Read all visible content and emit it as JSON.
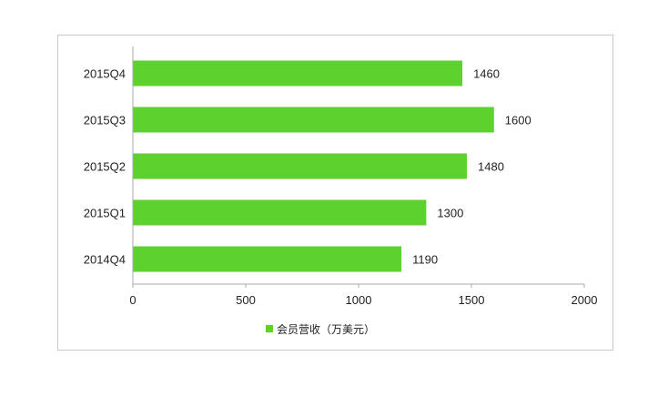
{
  "chart_data": {
    "type": "bar",
    "orientation": "horizontal",
    "categories": [
      "2015Q4",
      "2015Q3",
      "2015Q2",
      "2015Q1",
      "2014Q4"
    ],
    "series": [
      {
        "name": "会员营收（万美元）",
        "values": [
          1460,
          1600,
          1480,
          1300,
          1190
        ]
      }
    ],
    "xlim": [
      0,
      2000
    ],
    "xticks": [
      "0",
      "500",
      "1000",
      "1500",
      "2000"
    ],
    "grid": false,
    "legend_position": "bottom",
    "colors": {
      "bar": "#5dd22f",
      "frame": "#c9c9c9",
      "axis": "#aaaaaa"
    }
  }
}
